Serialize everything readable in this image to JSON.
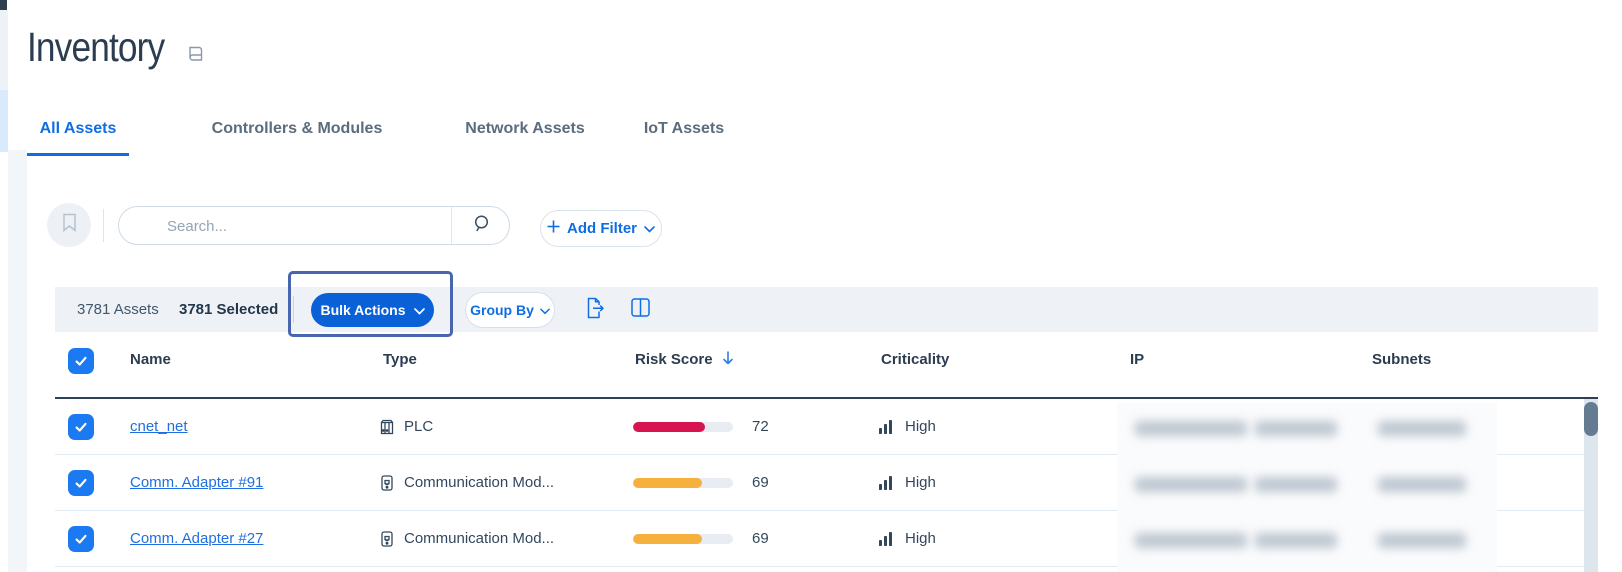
{
  "header": {
    "title": "Inventory"
  },
  "tabs": [
    {
      "label": "All Assets",
      "active": true
    },
    {
      "label": "Controllers & Modules",
      "active": false
    },
    {
      "label": "Network Assets",
      "active": false
    },
    {
      "label": "IoT Assets",
      "active": false
    }
  ],
  "filters": {
    "search_placeholder": "Search...",
    "add_filter_label": "Add Filter"
  },
  "toolbar": {
    "asset_count_label": "3781 Assets",
    "selected_count_label": "3781 Selected",
    "bulk_actions_label": "Bulk Actions",
    "group_by_label": "Group By"
  },
  "table": {
    "columns": {
      "name": "Name",
      "type": "Type",
      "risk_score": "Risk Score",
      "criticality": "Criticality",
      "ip": "IP",
      "subnets": "Subnets"
    },
    "sort": {
      "column": "Risk Score",
      "direction": "descending"
    },
    "all_rows_selected": true,
    "redacted_columns": [
      "IP",
      "Subnets"
    ],
    "rows": [
      {
        "name": "cnet_net",
        "type": "PLC",
        "risk_score": 72,
        "risk_color": "#d6144f",
        "criticality": "High"
      },
      {
        "name": "Comm. Adapter #91",
        "type": "Communication Mod...",
        "risk_score": 69,
        "risk_color": "#f6b03d",
        "criticality": "High"
      },
      {
        "name": "Comm. Adapter #27",
        "type": "Communication Mod...",
        "risk_score": 69,
        "risk_color": "#f6b03d",
        "criticality": "High"
      }
    ]
  },
  "colors": {
    "accent_blue": "#0f6ee4",
    "bulk_button_blue": "#0a60d6",
    "highlight_box_border": "#4866b0",
    "risk_red": "#d6144f",
    "risk_amber": "#f6b03d",
    "header_dark": "#2c3d50"
  }
}
